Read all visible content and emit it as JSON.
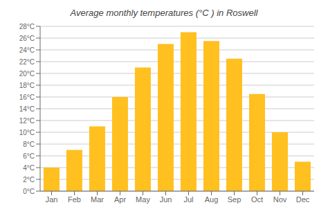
{
  "chart_data": {
    "type": "bar",
    "title": "Average monthly temperatures (°C ) in Roswell",
    "categories": [
      "Jan",
      "Feb",
      "Mar",
      "Apr",
      "May",
      "Jun",
      "Jul",
      "Aug",
      "Sep",
      "Oct",
      "Nov",
      "Dec"
    ],
    "values": [
      4,
      7,
      11,
      16,
      21,
      25,
      27,
      25.5,
      22.5,
      16.5,
      10,
      5
    ],
    "color": "#FFC020",
    "ylim": [
      0,
      28
    ],
    "yticks": [
      {
        "value": 0,
        "label": "0°C"
      },
      {
        "value": 2,
        "label": "2°C"
      },
      {
        "value": 4,
        "label": "4°C"
      },
      {
        "value": 6,
        "label": "6°C"
      },
      {
        "value": 8,
        "label": "8°C"
      },
      {
        "value": 10,
        "label": "10°C"
      },
      {
        "value": 12,
        "label": "12°C"
      },
      {
        "value": 14,
        "label": "14°C"
      },
      {
        "value": 16,
        "label": "16°C"
      },
      {
        "value": 18,
        "label": "18°C"
      },
      {
        "value": 20,
        "label": "20°C"
      },
      {
        "value": 22,
        "label": "22°C"
      },
      {
        "value": 24,
        "label": "24°C"
      },
      {
        "value": 26,
        "label": "26°C"
      },
      {
        "value": 28,
        "label": "28°C"
      }
    ],
    "grid": true
  }
}
